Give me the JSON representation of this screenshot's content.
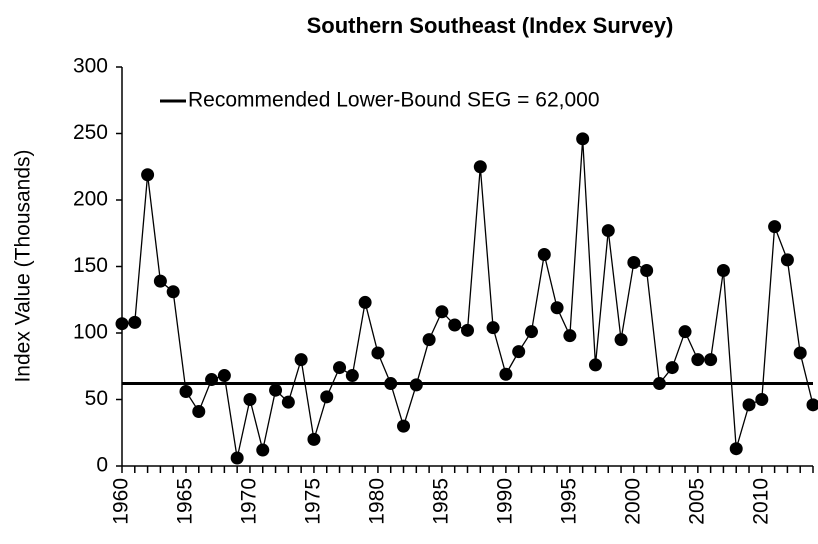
{
  "chart_data": {
    "type": "line",
    "title": "Southern Southeast (Index Survey)",
    "y_label": "Index Value (Thousands)",
    "x": [
      1960,
      1961,
      1962,
      1963,
      1964,
      1965,
      1966,
      1967,
      1968,
      1969,
      1970,
      1971,
      1972,
      1973,
      1974,
      1975,
      1976,
      1977,
      1978,
      1979,
      1980,
      1981,
      1982,
      1983,
      1984,
      1985,
      1986,
      1987,
      1988,
      1989,
      1990,
      1991,
      1992,
      1993,
      1994,
      1995,
      1996,
      1997,
      1998,
      1999,
      2000,
      2001,
      2002,
      2003,
      2004,
      2005,
      2006,
      2007,
      2008,
      2009,
      2010,
      2011,
      2012,
      2013,
      2014
    ],
    "series": [
      {
        "color": "#000000",
        "values": [
          107,
          108,
          219,
          139,
          131,
          56,
          41,
          65,
          68,
          6,
          50,
          12,
          57,
          48,
          80,
          20,
          52,
          74,
          68,
          123,
          85,
          62,
          30,
          61,
          95,
          116,
          106,
          102,
          225,
          104,
          69,
          86,
          101,
          159,
          119,
          98,
          246,
          76,
          177,
          95,
          153,
          147,
          62,
          74,
          101,
          80,
          80,
          147,
          13,
          46,
          50,
          180,
          155,
          85,
          46
        ]
      }
    ],
    "reference_line": {
      "value": 62,
      "label": "Recommended Lower-Bound SEG = 62,000",
      "color": "#000000"
    },
    "xlim": [
      1960,
      2014
    ],
    "xticks": [
      1960,
      1965,
      1970,
      1975,
      1980,
      1985,
      1990,
      1995,
      2000,
      2005,
      2010
    ],
    "ylim": [
      0,
      300
    ],
    "yticks": [
      0,
      50,
      100,
      150,
      200,
      250,
      300
    ],
    "grid": false
  }
}
